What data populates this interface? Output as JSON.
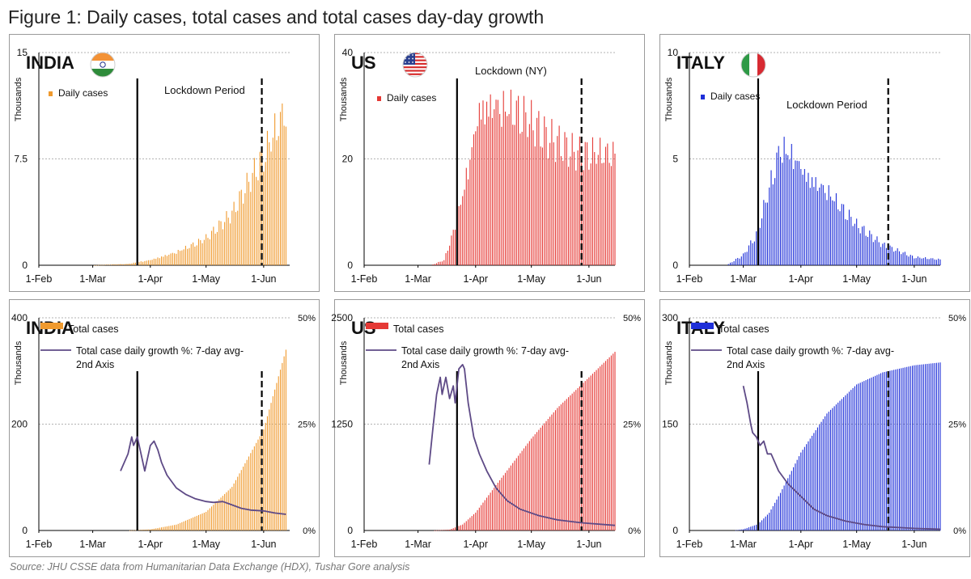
{
  "figure": {
    "title": "Figure 1: Daily cases, total cases and total cases day-day growth",
    "source": "Source: JHU CSSE data from Humanitarian Data Exchange (HDX), Tushar Gore analysis"
  },
  "colors": {
    "india": "#f09a2e",
    "us": "#e53935",
    "italy": "#1e2fd8",
    "growth_line": "#5e4a86"
  },
  "icons": {
    "india": "india-flag-icon",
    "us": "us-flag-icon",
    "italy": "italy-flag-icon"
  },
  "chart_data": [
    {
      "id": "india-daily",
      "type": "bar",
      "country": "INDIA",
      "ylabel": "Thousands",
      "ylim": [
        0,
        15
      ],
      "yticks": [
        "0",
        "7.5",
        "15"
      ],
      "xticks": [
        "1-Feb",
        "1-Mar",
        "1-Apr",
        "1-May",
        "1-Jun"
      ],
      "legend": [
        "Daily cases"
      ],
      "lockdown_label": "Lockdown Period",
      "lockdown": {
        "start": "2020-03-25",
        "end": "2020-05-31"
      },
      "x_start": "2020-02-01",
      "x_end": "2020-06-15",
      "series": [
        {
          "name": "Daily cases",
          "keypoints": [
            [
              "2020-03-01",
              0
            ],
            [
              "2020-03-20",
              0.1
            ],
            [
              "2020-04-01",
              0.4
            ],
            [
              "2020-04-15",
              1.0
            ],
            [
              "2020-05-01",
              2.0
            ],
            [
              "2020-05-15",
              3.8
            ],
            [
              "2020-06-01",
              8.2
            ],
            [
              "2020-06-13",
              12.0
            ]
          ]
        }
      ]
    },
    {
      "id": "us-daily",
      "type": "bar",
      "country": "US",
      "ylabel": "Thousands",
      "ylim": [
        0,
        40
      ],
      "yticks": [
        "0",
        "20",
        "40"
      ],
      "xticks": [
        "1-Feb",
        "1-Mar",
        "1-Apr",
        "1-May",
        "1-Jun"
      ],
      "legend": [
        "Daily cases"
      ],
      "lockdown_label": "Lockdown (NY)",
      "lockdown": {
        "start": "2020-03-22",
        "end": "2020-05-28"
      },
      "x_start": "2020-02-01",
      "x_end": "2020-06-15",
      "series": [
        {
          "name": "Daily cases",
          "keypoints": [
            [
              "2020-03-08",
              0
            ],
            [
              "2020-03-15",
              1
            ],
            [
              "2020-03-22",
              9
            ],
            [
              "2020-03-28",
              20
            ],
            [
              "2020-04-03",
              32
            ],
            [
              "2020-04-10",
              33
            ],
            [
              "2020-04-24",
              31
            ],
            [
              "2020-05-10",
              25
            ],
            [
              "2020-05-25",
              22
            ],
            [
              "2020-06-15",
              23
            ]
          ]
        }
      ]
    },
    {
      "id": "italy-daily",
      "type": "bar",
      "country": "ITALY",
      "ylabel": "Thousands",
      "ylim": [
        0,
        10
      ],
      "yticks": [
        "0",
        "5",
        "10"
      ],
      "xticks": [
        "1-Feb",
        "1-Mar",
        "1-Apr",
        "1-May",
        "1-Jun"
      ],
      "legend": [
        "Daily cases"
      ],
      "lockdown_label": "Lockdown Period",
      "lockdown": {
        "start": "2020-03-09",
        "end": "2020-05-18"
      },
      "x_start": "2020-02-01",
      "x_end": "2020-06-15",
      "series": [
        {
          "name": "Daily cases",
          "keypoints": [
            [
              "2020-02-21",
              0
            ],
            [
              "2020-03-01",
              0.5
            ],
            [
              "2020-03-08",
              1.5
            ],
            [
              "2020-03-14",
              3.5
            ],
            [
              "2020-03-21",
              6.0
            ],
            [
              "2020-03-28",
              5.6
            ],
            [
              "2020-04-04",
              4.6
            ],
            [
              "2020-04-15",
              3.8
            ],
            [
              "2020-05-01",
              2.0
            ],
            [
              "2020-05-15",
              1.0
            ],
            [
              "2020-06-01",
              0.4
            ],
            [
              "2020-06-15",
              0.3
            ]
          ]
        }
      ]
    },
    {
      "id": "india-total",
      "type": "bar+line",
      "country": "INDIA",
      "ylabel": "Thousands",
      "ylim": [
        0,
        400
      ],
      "yticks": [
        "0",
        "200",
        "400"
      ],
      "y2lim": [
        0,
        50
      ],
      "y2ticks": [
        "0%",
        "25%",
        "50%"
      ],
      "xticks": [
        "1-Feb",
        "1-Mar",
        "1-Apr",
        "1-May",
        "1-Jun"
      ],
      "legend": [
        "Total cases",
        "Total case daily growth %: 7-day avg-",
        "2nd Axis"
      ],
      "lockdown": {
        "start": "2020-03-25",
        "end": "2020-05-31"
      },
      "x_start": "2020-02-01",
      "x_end": "2020-06-15",
      "series": [
        {
          "name": "Total cases",
          "keypoints": [
            [
              "2020-03-20",
              0
            ],
            [
              "2020-04-01",
              2
            ],
            [
              "2020-04-15",
              11
            ],
            [
              "2020-05-01",
              35
            ],
            [
              "2020-05-15",
              82
            ],
            [
              "2020-06-01",
              190
            ],
            [
              "2020-06-13",
              340
            ]
          ]
        },
        {
          "name": "Total case daily growth %: 7-day avg-2nd Axis",
          "keypoints": [
            [
              "2020-03-16",
              14
            ],
            [
              "2020-03-20",
              18
            ],
            [
              "2020-03-22",
              22
            ],
            [
              "2020-03-23",
              20
            ],
            [
              "2020-03-25",
              22
            ],
            [
              "2020-03-27",
              18
            ],
            [
              "2020-03-29",
              14
            ],
            [
              "2020-04-01",
              20
            ],
            [
              "2020-04-03",
              21
            ],
            [
              "2020-04-05",
              19
            ],
            [
              "2020-04-07",
              16
            ],
            [
              "2020-04-10",
              13
            ],
            [
              "2020-04-15",
              10
            ],
            [
              "2020-04-20",
              8.5
            ],
            [
              "2020-04-25",
              7.5
            ],
            [
              "2020-05-01",
              6.8
            ],
            [
              "2020-05-05",
              6.6
            ],
            [
              "2020-05-10",
              6.8
            ],
            [
              "2020-05-15",
              6.0
            ],
            [
              "2020-05-20",
              5.2
            ],
            [
              "2020-05-25",
              4.8
            ],
            [
              "2020-06-01",
              4.6
            ],
            [
              "2020-06-07",
              4.1
            ],
            [
              "2020-06-13",
              3.8
            ]
          ]
        }
      ]
    },
    {
      "id": "us-total",
      "type": "bar+line",
      "country": "US",
      "ylabel": "Thousands",
      "ylim": [
        0,
        2500
      ],
      "yticks": [
        "0",
        "1250",
        "2500"
      ],
      "y2lim": [
        0,
        50
      ],
      "y2ticks": [
        "0%",
        "25%",
        "50%"
      ],
      "xticks": [
        "1-Feb",
        "1-Mar",
        "1-Apr",
        "1-May",
        "1-Jun"
      ],
      "legend": [
        "Total cases",
        "Total case daily growth %: 7-day avg-",
        "2nd Axis"
      ],
      "lockdown": {
        "start": "2020-03-22",
        "end": "2020-05-28"
      },
      "x_start": "2020-02-01",
      "x_end": "2020-06-15",
      "series": [
        {
          "name": "Total cases",
          "keypoints": [
            [
              "2020-03-10",
              1
            ],
            [
              "2020-03-18",
              10
            ],
            [
              "2020-03-25",
              70
            ],
            [
              "2020-04-01",
              210
            ],
            [
              "2020-04-15",
              620
            ],
            [
              "2020-05-01",
              1080
            ],
            [
              "2020-05-15",
              1440
            ],
            [
              "2020-06-01",
              1800
            ],
            [
              "2020-06-15",
              2100
            ]
          ]
        },
        {
          "name": "Total case daily growth %: 7-day avg-2nd Axis",
          "keypoints": [
            [
              "2020-03-07",
              15.5
            ],
            [
              "2020-03-09",
              24
            ],
            [
              "2020-03-11",
              32
            ],
            [
              "2020-03-13",
              36
            ],
            [
              "2020-03-14",
              32
            ],
            [
              "2020-03-16",
              36
            ],
            [
              "2020-03-18",
              31
            ],
            [
              "2020-03-20",
              34
            ],
            [
              "2020-03-21",
              30
            ],
            [
              "2020-03-23",
              38
            ],
            [
              "2020-03-25",
              39
            ],
            [
              "2020-03-26",
              38
            ],
            [
              "2020-03-28",
              30
            ],
            [
              "2020-03-31",
              22
            ],
            [
              "2020-04-03",
              18
            ],
            [
              "2020-04-07",
              14
            ],
            [
              "2020-04-12",
              10
            ],
            [
              "2020-04-18",
              7
            ],
            [
              "2020-04-25",
              5
            ],
            [
              "2020-05-05",
              3.5
            ],
            [
              "2020-05-15",
              2.5
            ],
            [
              "2020-05-28",
              1.8
            ],
            [
              "2020-06-15",
              1.2
            ]
          ]
        }
      ]
    },
    {
      "id": "italy-total",
      "type": "bar+line",
      "country": "ITALY",
      "ylabel": "Thousands",
      "ylim": [
        0,
        300
      ],
      "yticks": [
        "0",
        "150",
        "300"
      ],
      "y2lim": [
        0,
        50
      ],
      "y2ticks": [
        "0%",
        "25%",
        "50%"
      ],
      "xticks": [
        "1-Feb",
        "1-Mar",
        "1-Apr",
        "1-May",
        "1-Jun"
      ],
      "legend": [
        "Total cases",
        "Total case daily growth %: 7-day avg-",
        "2nd Axis"
      ],
      "lockdown": {
        "start": "2020-03-09",
        "end": "2020-05-18"
      },
      "x_start": "2020-02-01",
      "x_end": "2020-06-15",
      "series": [
        {
          "name": "Total cases",
          "keypoints": [
            [
              "2020-02-25",
              0
            ],
            [
              "2020-03-01",
              1.7
            ],
            [
              "2020-03-09",
              9
            ],
            [
              "2020-03-15",
              25
            ],
            [
              "2020-03-21",
              53
            ],
            [
              "2020-04-01",
              110
            ],
            [
              "2020-04-15",
              165
            ],
            [
              "2020-05-01",
              206
            ],
            [
              "2020-05-15",
              223
            ],
            [
              "2020-06-01",
              233
            ],
            [
              "2020-06-15",
              237
            ]
          ]
        },
        {
          "name": "Total case daily growth %: 7-day avg-2nd Axis",
          "keypoints": [
            [
              "2020-03-01",
              34
            ],
            [
              "2020-03-03",
              30
            ],
            [
              "2020-03-05",
              25
            ],
            [
              "2020-03-06",
              23
            ],
            [
              "2020-03-08",
              22
            ],
            [
              "2020-03-10",
              20
            ],
            [
              "2020-03-12",
              21
            ],
            [
              "2020-03-14",
              18
            ],
            [
              "2020-03-16",
              18
            ],
            [
              "2020-03-18",
              16
            ],
            [
              "2020-03-20",
              14
            ],
            [
              "2020-03-25",
              11
            ],
            [
              "2020-04-01",
              8
            ],
            [
              "2020-04-08",
              5
            ],
            [
              "2020-04-15",
              3.5
            ],
            [
              "2020-04-25",
              2.2
            ],
            [
              "2020-05-05",
              1.4
            ],
            [
              "2020-05-15",
              0.9
            ],
            [
              "2020-06-01",
              0.5
            ],
            [
              "2020-06-15",
              0.3
            ]
          ]
        }
      ]
    }
  ]
}
